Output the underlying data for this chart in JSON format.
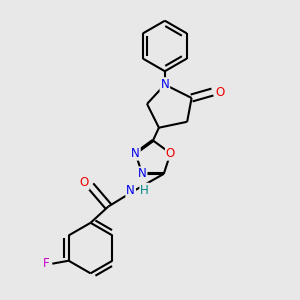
{
  "background_color": "#e8e8e8",
  "atom_colors": {
    "N": "#0000ee",
    "O": "#ee0000",
    "F": "#cc00cc",
    "H": "#008888"
  },
  "bond_lw": 1.5,
  "dbl_off": 0.022,
  "fs": 8.5
}
